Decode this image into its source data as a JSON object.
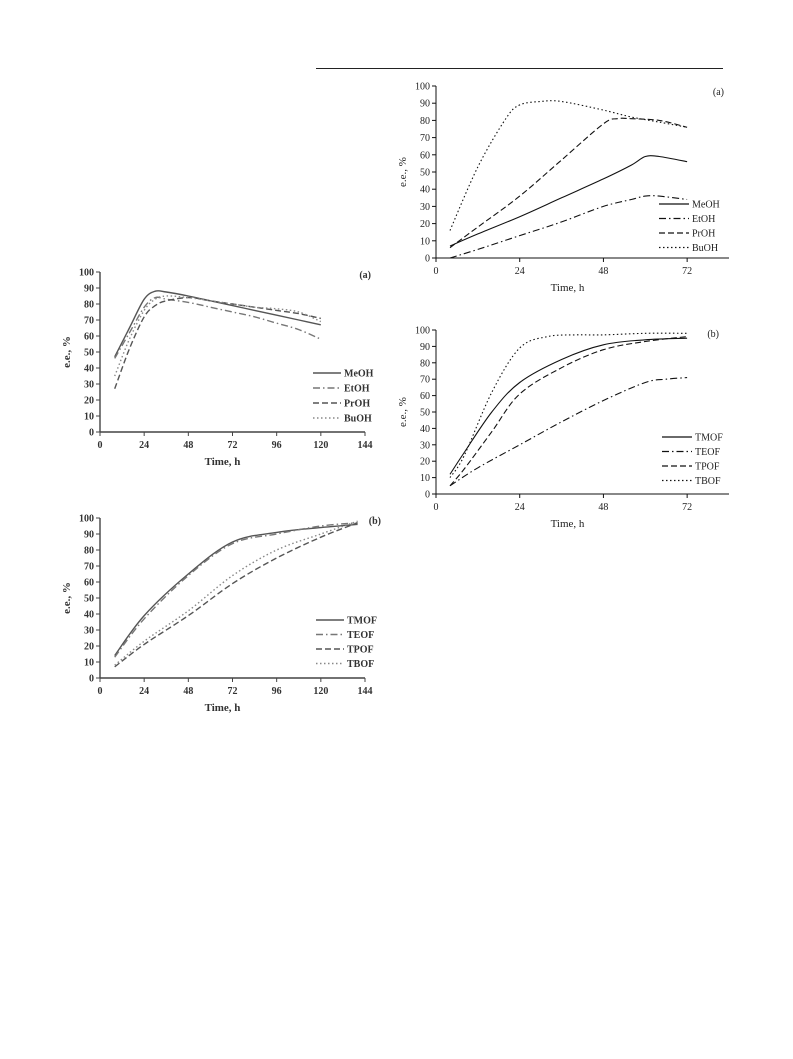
{
  "chart_data": [
    {
      "id": "left-a",
      "type": "line",
      "panel_label": "(a)",
      "xlabel": "Time, h",
      "ylabel": "e.e., %",
      "xlim": [
        0,
        144
      ],
      "ylim": [
        0,
        100
      ],
      "xticks": [
        0,
        24,
        48,
        72,
        96,
        120,
        144
      ],
      "yticks": [
        0,
        10,
        20,
        30,
        40,
        50,
        60,
        70,
        80,
        90,
        100
      ],
      "legend_position": "right-middle",
      "series": [
        {
          "name": "MeOH",
          "style": "solid",
          "color": "#555555",
          "x": [
            8,
            16,
            24,
            30,
            36,
            48,
            60,
            72,
            84,
            96,
            108,
            120
          ],
          "y": [
            47,
            65,
            83,
            88,
            87.5,
            85,
            82,
            79,
            76,
            73,
            70,
            67
          ]
        },
        {
          "name": "EtOH",
          "style": "dashdot",
          "color": "#777777",
          "x": [
            8,
            16,
            24,
            30,
            36,
            48,
            60,
            72,
            84,
            96,
            108,
            120
          ],
          "y": [
            46,
            62,
            78,
            84,
            83,
            81,
            78,
            75,
            72,
            68,
            64,
            58
          ]
        },
        {
          "name": "PrOH",
          "style": "dash",
          "color": "#555555",
          "x": [
            8,
            16,
            24,
            30,
            36,
            48,
            60,
            72,
            84,
            96,
            108,
            120
          ],
          "y": [
            27,
            52,
            72,
            79,
            82,
            84,
            82,
            80,
            78,
            76,
            74,
            71
          ]
        },
        {
          "name": "BuOH",
          "style": "dot",
          "color": "#888888",
          "x": [
            8,
            16,
            24,
            30,
            36,
            48,
            60,
            72,
            84,
            96,
            108,
            120
          ],
          "y": [
            35,
            58,
            76,
            83,
            85,
            84,
            82,
            80,
            78,
            77,
            75,
            69
          ]
        }
      ]
    },
    {
      "id": "left-b",
      "type": "line",
      "panel_label": "(b)",
      "xlabel": "Time, h",
      "ylabel": "e.e., %",
      "xlim": [
        0,
        144
      ],
      "ylim": [
        0,
        100
      ],
      "xticks": [
        0,
        24,
        48,
        72,
        96,
        120,
        144
      ],
      "yticks": [
        0,
        10,
        20,
        30,
        40,
        50,
        60,
        70,
        80,
        90,
        100
      ],
      "legend_position": "right-bottom",
      "series": [
        {
          "name": "TMOF",
          "style": "solid",
          "color": "#555555",
          "x": [
            8,
            24,
            48,
            72,
            96,
            120,
            140
          ],
          "y": [
            14,
            39,
            65,
            85,
            91,
            94,
            96
          ]
        },
        {
          "name": "TEOF",
          "style": "dashdot",
          "color": "#777777",
          "x": [
            8,
            24,
            48,
            72,
            96,
            120,
            140
          ],
          "y": [
            13,
            37,
            64,
            84,
            90,
            95,
            97
          ]
        },
        {
          "name": "TPOF",
          "style": "dash",
          "color": "#555555",
          "x": [
            8,
            24,
            48,
            72,
            96,
            120,
            140
          ],
          "y": [
            7,
            21,
            39,
            59,
            75,
            88,
            97
          ]
        },
        {
          "name": "TBOF",
          "style": "dot",
          "color": "#888888",
          "x": [
            8,
            24,
            48,
            72,
            96,
            120,
            140
          ],
          "y": [
            8,
            23,
            42,
            64,
            80,
            90,
            98
          ]
        }
      ]
    },
    {
      "id": "right-a",
      "type": "line",
      "panel_label": "(a)",
      "xlabel": "Time, h",
      "ylabel": "e.e., %",
      "xlim": [
        0,
        84
      ],
      "ylim": [
        0,
        100
      ],
      "xticks": [
        0,
        24,
        48,
        72
      ],
      "yticks": [
        0,
        10,
        20,
        30,
        40,
        50,
        60,
        70,
        80,
        90,
        100
      ],
      "legend_position": "right-bottom",
      "series": [
        {
          "name": "MeOH",
          "style": "solid",
          "color": "#111111",
          "x": [
            4,
            12,
            24,
            36,
            48,
            56,
            60,
            64,
            72
          ],
          "y": [
            7,
            14,
            24,
            35,
            46,
            54,
            59,
            59,
            56
          ]
        },
        {
          "name": "EtOH",
          "style": "dashdot",
          "color": "#111111",
          "x": [
            4,
            12,
            24,
            36,
            48,
            56,
            60,
            64,
            72
          ],
          "y": [
            0,
            5,
            13,
            21,
            30,
            34,
            36,
            36,
            34
          ]
        },
        {
          "name": "PrOH",
          "style": "dash",
          "color": "#111111",
          "x": [
            4,
            12,
            24,
            36,
            48,
            52,
            56,
            64,
            72
          ],
          "y": [
            6,
            18,
            36,
            57,
            78,
            81,
            81,
            80,
            76
          ]
        },
        {
          "name": "BuOH",
          "style": "dot",
          "color": "#111111",
          "x": [
            4,
            12,
            20,
            24,
            30,
            36,
            48,
            56,
            64,
            72
          ],
          "y": [
            16,
            53,
            81,
            89,
            91,
            91,
            86,
            82,
            79,
            76
          ]
        }
      ]
    },
    {
      "id": "right-b",
      "type": "line",
      "panel_label": "(b)",
      "xlabel": "Time, h",
      "ylabel": "e.e., %",
      "xlim": [
        0,
        84
      ],
      "ylim": [
        0,
        100
      ],
      "xticks": [
        0,
        24,
        48,
        72
      ],
      "yticks": [
        0,
        10,
        20,
        30,
        40,
        50,
        60,
        70,
        80,
        90,
        100
      ],
      "legend_position": "right-bottom",
      "series": [
        {
          "name": "TMOF",
          "style": "solid",
          "color": "#111111",
          "x": [
            4,
            8,
            16,
            24,
            36,
            48,
            60,
            72
          ],
          "y": [
            12,
            25,
            50,
            68,
            82,
            91,
            94,
            95
          ]
        },
        {
          "name": "TEOF",
          "style": "dashdot",
          "color": "#111111",
          "x": [
            4,
            12,
            24,
            36,
            48,
            60,
            66,
            72
          ],
          "y": [
            5,
            16,
            30,
            44,
            57,
            68,
            70,
            71
          ]
        },
        {
          "name": "TPOF",
          "style": "dash",
          "color": "#111111",
          "x": [
            4,
            8,
            16,
            24,
            36,
            48,
            60,
            72
          ],
          "y": [
            5,
            15,
            38,
            61,
            77,
            88,
            93,
            96
          ]
        },
        {
          "name": "TBOF",
          "style": "dot",
          "color": "#111111",
          "x": [
            4,
            8,
            16,
            24,
            32,
            40,
            48,
            60,
            72
          ],
          "y": [
            10,
            23,
            62,
            89,
            96,
            97,
            97,
            98,
            98
          ]
        }
      ]
    }
  ]
}
